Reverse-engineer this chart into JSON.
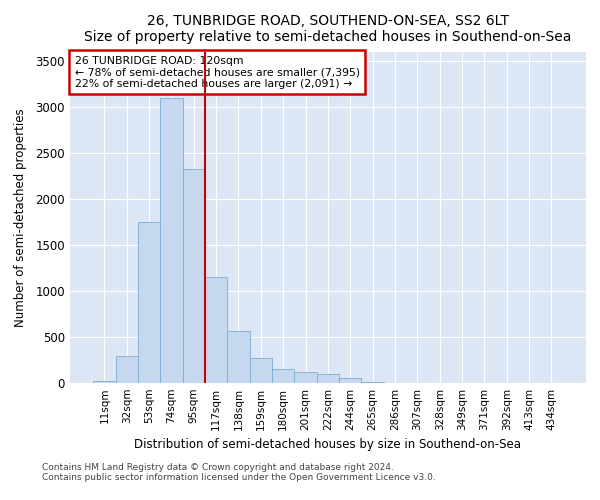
{
  "title": "26, TUNBRIDGE ROAD, SOUTHEND-ON-SEA, SS2 6LT",
  "subtitle": "Size of property relative to semi-detached houses in Southend-on-Sea",
  "xlabel": "Distribution of semi-detached houses by size in Southend-on-Sea",
  "ylabel": "Number of semi-detached properties",
  "footnote1": "Contains HM Land Registry data © Crown copyright and database right 2024.",
  "footnote2": "Contains public sector information licensed under the Open Government Licence v3.0.",
  "annotation_line1": "26 TUNBRIDGE ROAD: 120sqm",
  "annotation_line2": "← 78% of semi-detached houses are smaller (7,395)",
  "annotation_line3": "22% of semi-detached houses are larger (2,091) →",
  "bar_color": "#c5d8ef",
  "bar_edge_color": "#7bafd4",
  "highlight_line_color": "#cc0000",
  "annotation_box_edge_color": "#cc0000",
  "background_color": "#dce6f5",
  "categories": [
    "11sqm",
    "32sqm",
    "53sqm",
    "74sqm",
    "95sqm",
    "117sqm",
    "138sqm",
    "159sqm",
    "180sqm",
    "201sqm",
    "222sqm",
    "244sqm",
    "265sqm",
    "286sqm",
    "307sqm",
    "328sqm",
    "349sqm",
    "371sqm",
    "392sqm",
    "413sqm",
    "434sqm"
  ],
  "values": [
    15,
    295,
    1750,
    3100,
    2330,
    1150,
    560,
    270,
    150,
    120,
    100,
    55,
    10,
    0,
    0,
    0,
    0,
    0,
    0,
    0,
    0
  ],
  "highlight_bar_index": 5,
  "ylim": [
    0,
    3600
  ],
  "yticks": [
    0,
    500,
    1000,
    1500,
    2000,
    2500,
    3000,
    3500
  ]
}
